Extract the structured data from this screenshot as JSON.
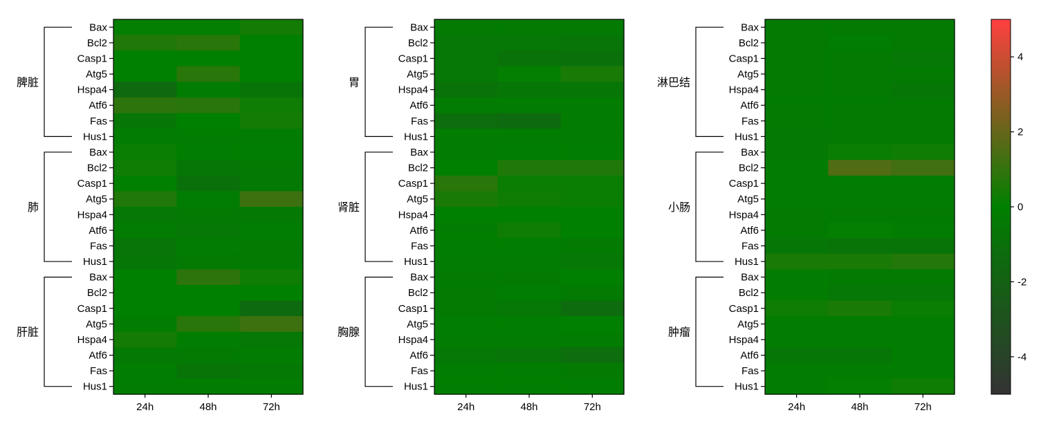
{
  "chart_data": {
    "type": "heatmap",
    "genes": [
      "Bax",
      "Bcl2",
      "Casp1",
      "Atg5",
      "Hspa4",
      "Atf6",
      "Fas",
      "Hus1"
    ],
    "timepoints": [
      "24h",
      "48h",
      "72h"
    ],
    "colorscale": {
      "low": "#333333",
      "mid": "#008000",
      "high": "#ff4040",
      "range": [
        -5,
        5
      ]
    },
    "colorbar_ticks": [
      "4",
      "2",
      "0",
      "-2",
      "-4"
    ],
    "colorbar_tick_values": [
      4,
      2,
      0,
      -2,
      -4
    ],
    "panels": [
      {
        "groups": [
          {
            "name": "脾脏",
            "values": [
              [
                0.1,
                0.1,
                0.4
              ],
              [
                0.6,
                0.8,
                0.0
              ],
              [
                0.0,
                0.0,
                0.0
              ],
              [
                0.0,
                0.8,
                0.0
              ],
              [
                -1.5,
                -0.2,
                -0.8
              ],
              [
                0.9,
                0.8,
                0.3
              ],
              [
                -0.6,
                0.0,
                0.4
              ],
              [
                -0.2,
                -0.2,
                -0.2
              ]
            ]
          },
          {
            "name": "肺",
            "values": [
              [
                0.2,
                -0.1,
                -0.1
              ],
              [
                0.3,
                -0.6,
                -0.3
              ],
              [
                0.0,
                -1.0,
                -0.4
              ],
              [
                0.6,
                -0.1,
                1.2
              ],
              [
                -0.5,
                -0.3,
                -0.4
              ],
              [
                -0.2,
                -0.5,
                -0.1
              ],
              [
                -0.7,
                -0.2,
                -0.3
              ],
              [
                -0.6,
                -0.3,
                -0.3
              ]
            ]
          },
          {
            "name": "肝脏",
            "values": [
              [
                0.0,
                0.9,
                0.3
              ],
              [
                0.0,
                0.0,
                0.0
              ],
              [
                0.0,
                0.0,
                -1.4
              ],
              [
                -0.2,
                0.8,
                1.2
              ],
              [
                0.4,
                -0.1,
                -0.5
              ],
              [
                -0.4,
                -0.3,
                -0.2
              ],
              [
                -0.1,
                -0.8,
                -0.4
              ],
              [
                -0.2,
                -0.2,
                -0.2
              ]
            ]
          }
        ]
      },
      {
        "groups": [
          {
            "name": "胃",
            "values": [
              [
                -0.3,
                -0.3,
                -0.3
              ],
              [
                -0.5,
                -0.5,
                -0.7
              ],
              [
                -0.5,
                -0.9,
                -1.0
              ],
              [
                -0.5,
                0.1,
                0.5
              ],
              [
                -0.9,
                -0.6,
                -0.6
              ],
              [
                -0.2,
                -0.2,
                -0.2
              ],
              [
                -1.2,
                -1.4,
                -0.2
              ],
              [
                -0.2,
                -0.2,
                -0.2
              ]
            ]
          },
          {
            "name": "肾脏",
            "values": [
              [
                -0.2,
                -0.1,
                -0.1
              ],
              [
                0.0,
                0.6,
                0.6
              ],
              [
                0.8,
                0.2,
                0.2
              ],
              [
                0.5,
                0.3,
                0.2
              ],
              [
                0.0,
                0.0,
                0.0
              ],
              [
                -0.2,
                0.3,
                0.0
              ],
              [
                -0.1,
                -0.1,
                -0.3
              ],
              [
                -0.2,
                -0.2,
                -0.5
              ]
            ]
          },
          {
            "name": "胸腺",
            "values": [
              [
                -0.3,
                -0.3,
                0.0
              ],
              [
                -0.3,
                -0.1,
                -0.3
              ],
              [
                -0.3,
                -0.5,
                -1.3
              ],
              [
                -0.1,
                -0.1,
                0.0
              ],
              [
                -0.2,
                -0.2,
                -0.2
              ],
              [
                -0.5,
                -0.7,
                -1.2
              ],
              [
                -0.1,
                -0.1,
                -0.3
              ],
              [
                -0.1,
                -0.1,
                -0.1
              ]
            ]
          }
        ]
      },
      {
        "groups": [
          {
            "name": "淋巴结",
            "values": [
              [
                -0.3,
                -0.3,
                -0.3
              ],
              [
                -0.3,
                -0.1,
                -0.3
              ],
              [
                -0.3,
                -0.3,
                -0.5
              ],
              [
                -0.3,
                -0.3,
                -0.3
              ],
              [
                -0.3,
                -0.3,
                -0.6
              ],
              [
                -0.3,
                -0.3,
                -0.3
              ],
              [
                -0.3,
                -0.3,
                -0.3
              ],
              [
                -0.4,
                -0.3,
                -0.3
              ]
            ]
          },
          {
            "name": "小肠",
            "values": [
              [
                -0.4,
                0.2,
                0.3
              ],
              [
                -0.2,
                1.6,
                1.3
              ],
              [
                -0.2,
                -0.2,
                -0.2
              ],
              [
                -0.2,
                -0.2,
                -0.2
              ],
              [
                -0.3,
                -0.3,
                -0.3
              ],
              [
                -0.3,
                0.1,
                -0.2
              ],
              [
                -0.6,
                -0.8,
                -0.8
              ],
              [
                0.5,
                0.5,
                0.7
              ]
            ]
          },
          {
            "name": "肿瘤",
            "values": [
              [
                -0.2,
                -0.3,
                -0.3
              ],
              [
                -0.2,
                -0.5,
                -0.5
              ],
              [
                0.3,
                0.5,
                0.2
              ],
              [
                -0.2,
                -0.2,
                -0.2
              ],
              [
                -0.2,
                -0.2,
                -0.2
              ],
              [
                -0.6,
                -0.6,
                -0.2
              ],
              [
                -0.2,
                -0.2,
                -0.2
              ],
              [
                -0.2,
                0.1,
                0.3
              ]
            ]
          }
        ]
      }
    ]
  }
}
